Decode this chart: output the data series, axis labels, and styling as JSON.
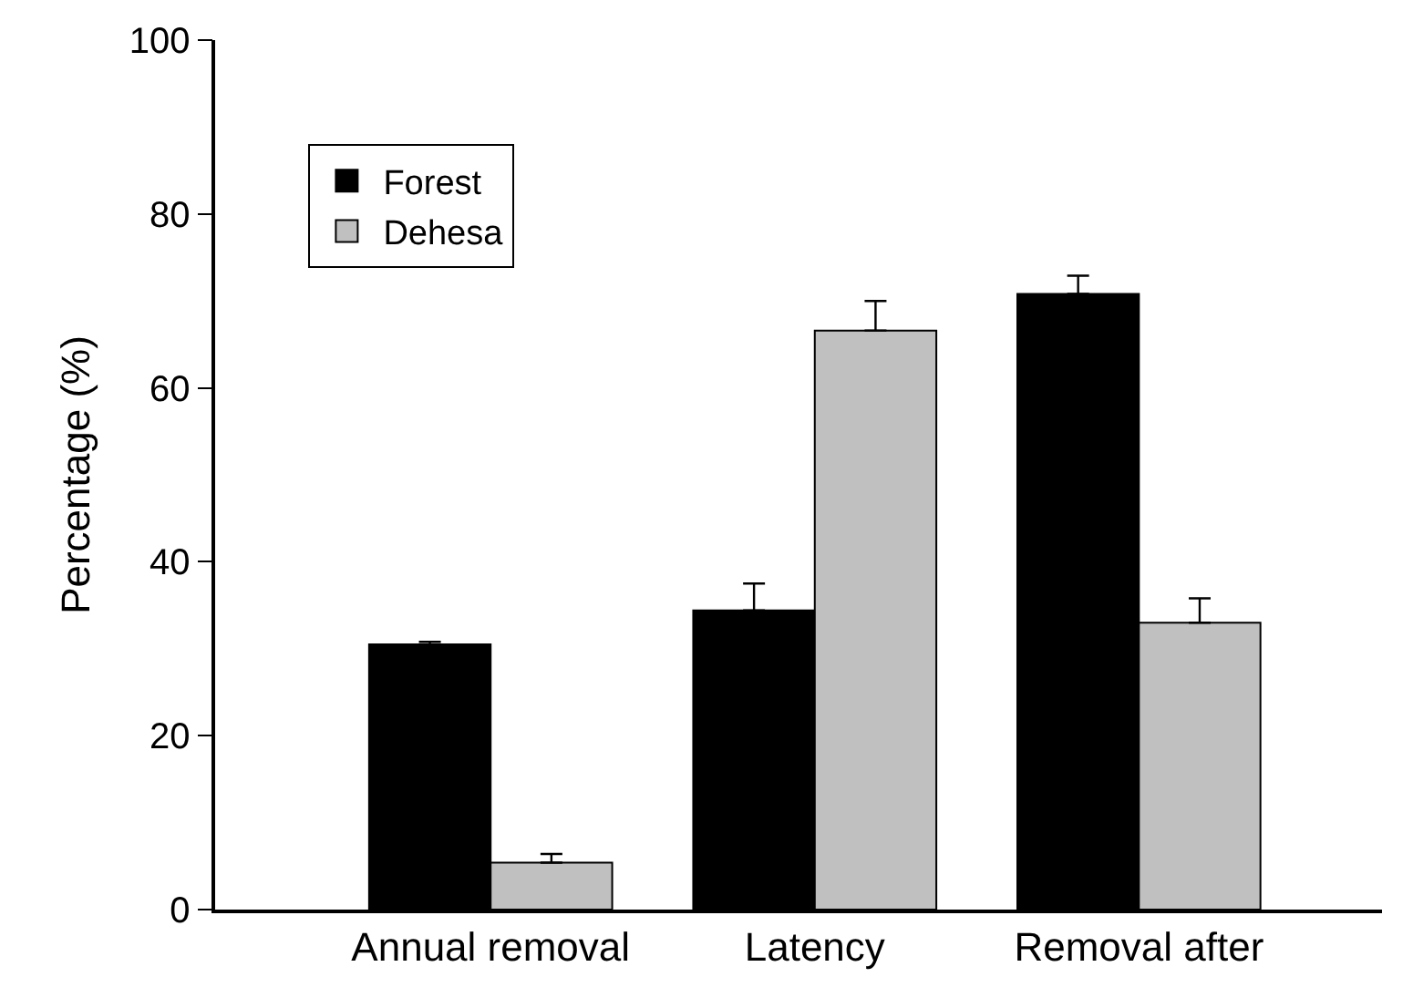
{
  "chart_data": {
    "type": "bar",
    "ylabel": "Percentage (%)",
    "categories": [
      "Annual removal",
      "Latency",
      "Removal after"
    ],
    "series": [
      {
        "name": "Forest",
        "color": "#000000",
        "values": [
          30.5,
          34.4,
          70.8
        ],
        "errors": [
          [
            30.5,
            30.8
          ],
          [
            34.4,
            37.5
          ],
          [
            70.8,
            72.9
          ]
        ]
      },
      {
        "name": "Dehesa",
        "color": "#c0c0c0",
        "values": [
          5.4,
          66.6,
          33.0
        ],
        "errors": [
          [
            5.4,
            6.4
          ],
          [
            66.6,
            70.0
          ],
          [
            33.0,
            35.8
          ]
        ]
      }
    ],
    "ylim": [
      0,
      100
    ],
    "yticks": [
      0,
      20,
      40,
      60,
      80,
      100
    ],
    "legend": "top left"
  }
}
